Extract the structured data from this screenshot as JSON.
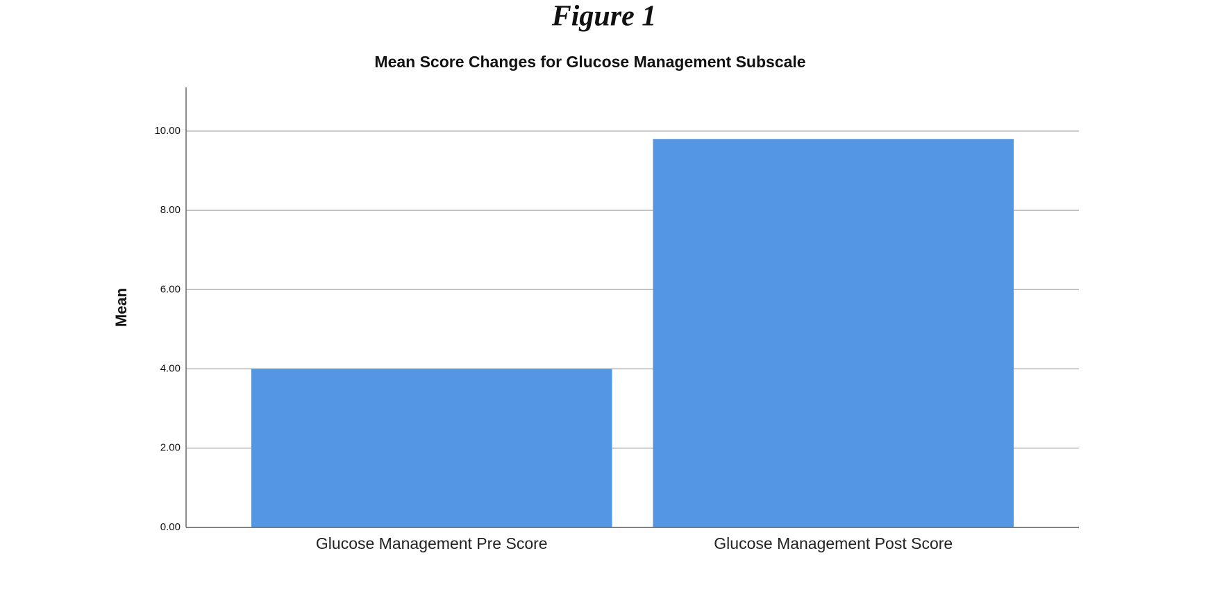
{
  "figure_label": "Figure 1",
  "chart_data": {
    "type": "bar",
    "title": "Mean Score Changes for Glucose Management Subscale",
    "y_label": "Mean",
    "categories": [
      "Glucose Management Pre Score",
      "Glucose Management Post Score"
    ],
    "values": [
      4.0,
      9.8
    ],
    "color": "#5596e3",
    "ylim": [
      0,
      11.1
    ],
    "yticks": [
      {
        "value": 0,
        "label": "0.00"
      },
      {
        "value": 2,
        "label": "2.00"
      },
      {
        "value": 4,
        "label": "4.00"
      },
      {
        "value": 6,
        "label": "6.00"
      },
      {
        "value": 8,
        "label": "8.00"
      },
      {
        "value": 10,
        "label": "10.00"
      }
    ],
    "grid": true
  }
}
